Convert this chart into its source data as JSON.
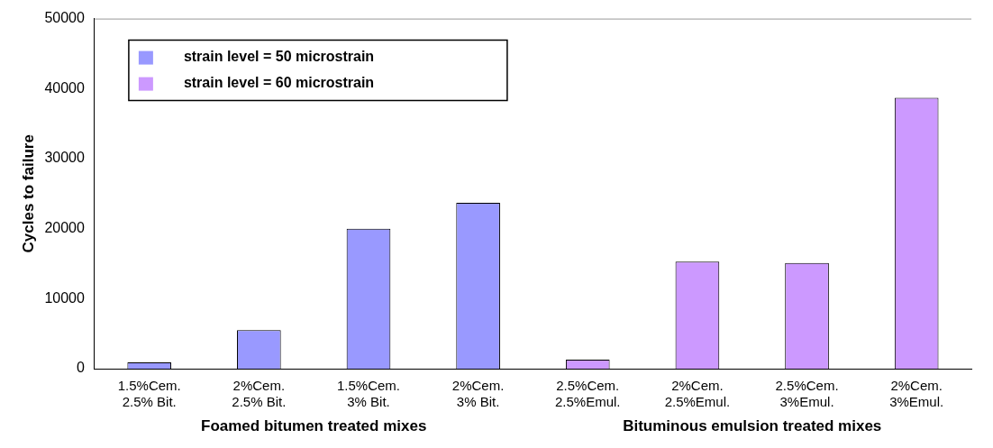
{
  "chart_data": {
    "type": "bar",
    "ylabel": "Cycles to failure",
    "categories": [
      "1.5%Cem. 2.5% Bit.",
      "2%Cem. 2.5% Bit.",
      "1.5%Cem. 3% Bit.",
      "2%Cem. 3% Bit.",
      "2.5%Cem. 2.5%Emul.",
      "2%Cem. 2.5%Emul.",
      "2.5%Cem. 3%Emul.",
      "2%Cem. 3%Emul."
    ],
    "series": [
      {
        "name": "strain level = 50 microstrain",
        "color": "#9999ff",
        "values": [
          900,
          5500,
          20000,
          23700,
          null,
          null,
          null,
          null
        ]
      },
      {
        "name": "strain level = 60 microstrain",
        "color": "#cc99ff",
        "values": [
          null,
          null,
          null,
          null,
          1300,
          15300,
          15100,
          38700
        ]
      }
    ],
    "ylim": [
      0,
      50000
    ],
    "yticks": [
      0,
      10000,
      20000,
      30000,
      40000,
      50000
    ],
    "legend": "top left",
    "annotations": [
      "Foamed bitumen treated mixes",
      "Bituminous emulsion treated mixes"
    ]
  }
}
